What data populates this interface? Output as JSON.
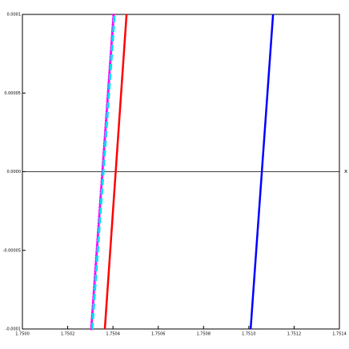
{
  "chart_data": {
    "type": "line",
    "xlabel": "x",
    "xlim": [
      1.75,
      1.7514
    ],
    "ylim": [
      -0.0001,
      0.0001
    ],
    "xticks": [
      {
        "value": 1.75,
        "label": "1.7500"
      },
      {
        "value": 1.7502,
        "label": "1.7502"
      },
      {
        "value": 1.7504,
        "label": "1.7504"
      },
      {
        "value": 1.7506,
        "label": "1.7506"
      },
      {
        "value": 1.7508,
        "label": "1.7508"
      },
      {
        "value": 1.751,
        "label": "1.7510"
      },
      {
        "value": 1.7512,
        "label": "1.7512"
      },
      {
        "value": 1.7514,
        "label": "1.7514"
      }
    ],
    "yticks": [
      {
        "value": -0.0001,
        "label": "-0.0001"
      },
      {
        "value": -5e-05,
        "label": "-0.00005"
      },
      {
        "value": 0,
        "label": "0.0000"
      },
      {
        "value": 5e-05,
        "label": "0.00005"
      },
      {
        "value": 0.0001,
        "label": "0.0001"
      }
    ],
    "series": [
      {
        "color": "#ff00ff",
        "style": "dot",
        "x": [
          1.750304,
          1.750403
        ],
        "values": [
          -0.0001,
          0.0001
        ]
      },
      {
        "color": "#00e0f0",
        "style": "dash",
        "x": [
          1.750308,
          1.750407
        ],
        "values": [
          -0.0001,
          0.0001
        ]
      },
      {
        "color": "#ff0000",
        "style": "solid",
        "x": [
          1.750364,
          1.75046
        ],
        "values": [
          -0.0001,
          0.0001
        ]
      },
      {
        "color": "#0000ff",
        "style": "solid",
        "x": [
          1.751008,
          1.751107
        ],
        "values": [
          -0.0001,
          0.0001
        ]
      }
    ]
  }
}
